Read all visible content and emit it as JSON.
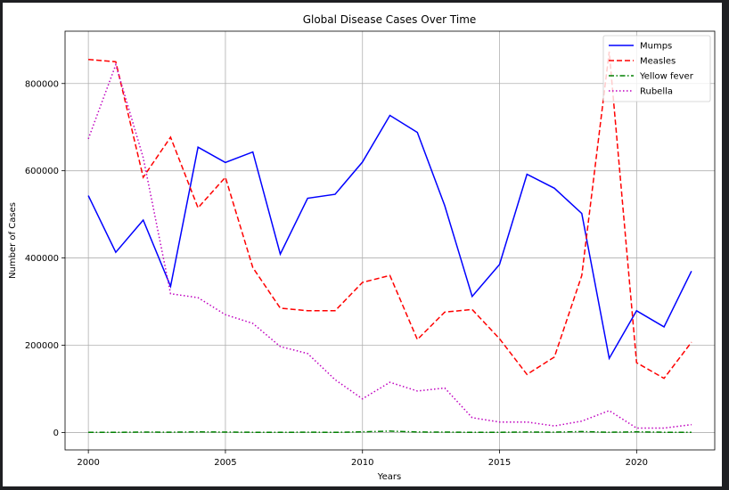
{
  "chart_data": {
    "type": "line",
    "title": "Global Disease Cases Over Time",
    "xlabel": "Years",
    "ylabel": "Number of Cases",
    "xlim": [
      1999.15,
      2022.85
    ],
    "ylim": [
      -40000,
      920000
    ],
    "xticks": [
      2000,
      2005,
      2010,
      2015,
      2020
    ],
    "yticks": [
      0,
      200000,
      400000,
      600000,
      800000
    ],
    "grid": true,
    "legend_position": "top-right",
    "x": [
      2000,
      2001,
      2002,
      2003,
      2004,
      2005,
      2006,
      2007,
      2008,
      2009,
      2010,
      2011,
      2012,
      2013,
      2014,
      2015,
      2016,
      2017,
      2018,
      2019,
      2020,
      2021,
      2022
    ],
    "series": [
      {
        "name": "Mumps",
        "color": "#0000ff",
        "style": "solid",
        "values": [
          543000,
          413000,
          487000,
          335000,
          654000,
          619000,
          643000,
          409000,
          537000,
          546000,
          620000,
          727000,
          688000,
          520000,
          312000,
          385000,
          592000,
          560000,
          502000,
          170000,
          279000,
          242000,
          370000
        ]
      },
      {
        "name": "Measles",
        "color": "#ff0000",
        "style": "dashed",
        "values": [
          855000,
          850000,
          585000,
          677000,
          515000,
          585000,
          378000,
          285000,
          279000,
          279000,
          344000,
          360000,
          213000,
          276000,
          282000,
          215000,
          133000,
          173000,
          360000,
          873000,
          160000,
          124000,
          207000
        ]
      },
      {
        "name": "Yellow fever",
        "color": "#008000",
        "style": "dashdot",
        "values": [
          500,
          300,
          800,
          600,
          1200,
          900,
          400,
          300,
          600,
          200,
          1500,
          3000,
          1000,
          800,
          200,
          400,
          1000,
          600,
          2000,
          500,
          1500,
          400,
          300
        ]
      },
      {
        "name": "Rubella",
        "color": "#bf00bf",
        "style": "dotted",
        "values": [
          673000,
          843000,
          630000,
          318000,
          309000,
          270000,
          250000,
          197000,
          181000,
          121000,
          77000,
          115000,
          95000,
          102000,
          34000,
          24000,
          24000,
          15000,
          26000,
          50000,
          10000,
          10000,
          18000
        ]
      }
    ]
  }
}
